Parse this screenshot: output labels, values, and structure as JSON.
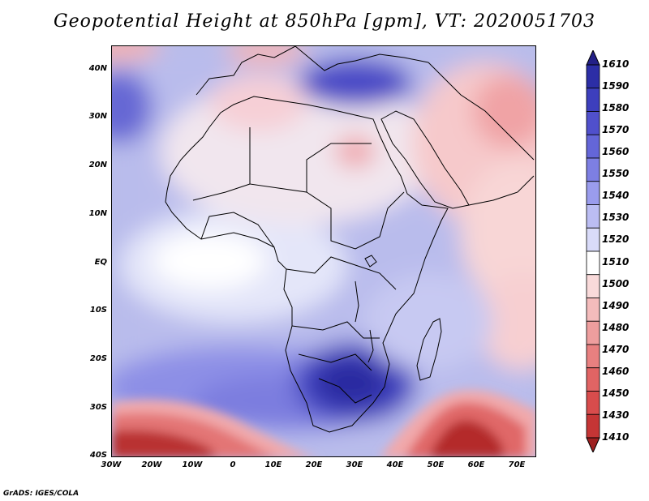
{
  "title": "Geopotential Height at 850hPa [gpm], VT: 2020051703",
  "footer": "GrADS: IGES/COLA",
  "map": {
    "lat_labels": [
      "40N",
      "30N",
      "20N",
      "10N",
      "EQ",
      "10S",
      "20S",
      "30S",
      "40S"
    ],
    "lon_labels": [
      "30W",
      "20W",
      "10W",
      "0",
      "10E",
      "20E",
      "30E",
      "40E",
      "50E",
      "60E",
      "70E"
    ]
  },
  "colorbar": {
    "labels": [
      "1610",
      "1590",
      "1580",
      "1570",
      "1560",
      "1550",
      "1540",
      "1530",
      "1520",
      "1510",
      "1500",
      "1490",
      "1480",
      "1470",
      "1460",
      "1450",
      "1430",
      "1410"
    ],
    "colors": [
      "#232087",
      "#2c2ea6",
      "#3d3fbd",
      "#5050cc",
      "#6466d8",
      "#7d7fe3",
      "#9a9ced",
      "#bbbdf3",
      "#d9dbf9",
      "#ffffff",
      "#f9dada",
      "#f4bcbc",
      "#ee9e9e",
      "#e88080",
      "#e16464",
      "#d84c4c",
      "#c53535",
      "#9e2020"
    ]
  }
}
